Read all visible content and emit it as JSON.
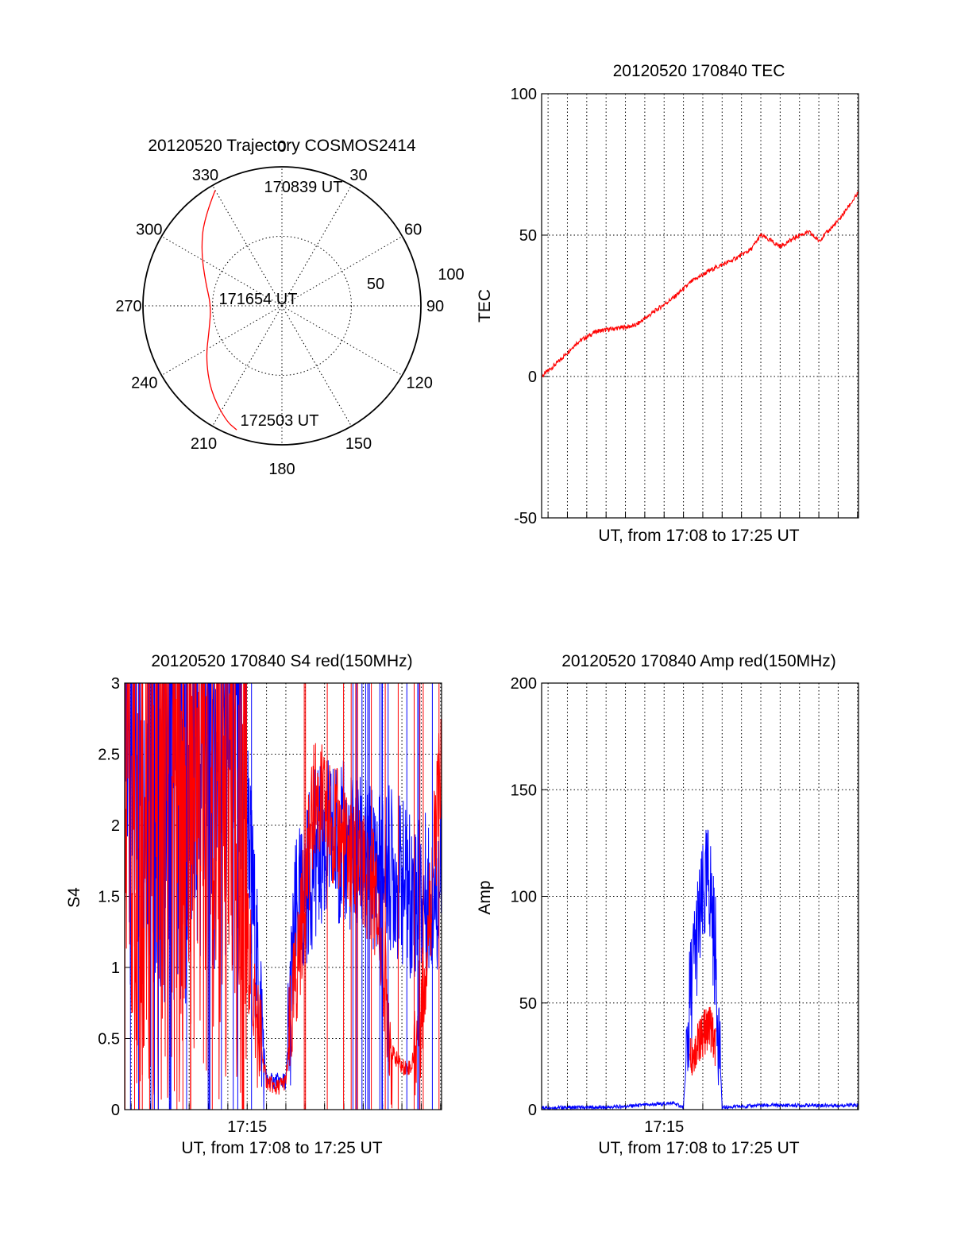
{
  "chart_data": [
    {
      "type": "polar-trajectory",
      "title": "20120520 Trajectory COSMOS2414",
      "azimuth_labels": [
        "0",
        "30",
        "60",
        "90",
        "120",
        "150",
        "180",
        "210",
        "240",
        "270",
        "300",
        "330"
      ],
      "radial_labels": [
        "50",
        "100"
      ],
      "points": [
        {
          "label": "170839 UT",
          "azimuth_deg": 330,
          "radius": 96
        },
        {
          "label": "171654 UT",
          "azimuth_deg": 270,
          "radius": 51
        },
        {
          "label": "172503 UT",
          "azimuth_deg": 200,
          "radius": 95
        }
      ],
      "path": [
        [
          330,
          96
        ],
        [
          318,
          84
        ],
        [
          304,
          70
        ],
        [
          288,
          58
        ],
        [
          270,
          51
        ],
        [
          252,
          55
        ],
        [
          236,
          66
        ],
        [
          220,
          80
        ],
        [
          206,
          92
        ],
        [
          200,
          95
        ]
      ],
      "line_color": "#ff0000"
    },
    {
      "type": "line",
      "title": "20120520 170840 TEC",
      "xlabel": "UT, from 17:08 to 17:25 UT",
      "ylabel": "TEC",
      "xlim": [
        170840,
        172503
      ],
      "ylim": [
        -50,
        100
      ],
      "yticks": [
        "-50",
        "0",
        "50",
        "100"
      ],
      "series": [
        {
          "color": "#ff0000",
          "x": [
            "17:08:40",
            "17:09:30",
            "17:10:30",
            "17:11:30",
            "17:12:30",
            "17:13:30",
            "17:14:30",
            "17:15:30",
            "17:16:30",
            "17:17:30",
            "17:18:30",
            "17:19:30",
            "17:20:00",
            "17:21:00",
            "17:22:00",
            "17:22:30",
            "17:23:00",
            "17:24:00",
            "17:25:03"
          ],
          "y": [
            0,
            5,
            12,
            16,
            17,
            18,
            23,
            28,
            34,
            38,
            41,
            45,
            50,
            46,
            50,
            51,
            48,
            55,
            65
          ]
        }
      ]
    },
    {
      "type": "line",
      "title": "20120520 170840 S4 red(150MHz)",
      "xlabel": "UT, from 17:08 to 17:25 UT",
      "ylabel": "S4",
      "xlim": [
        170840,
        172503
      ],
      "ylim": [
        0,
        3
      ],
      "yticks": [
        "0",
        "0.5",
        "1",
        "1.5",
        "2",
        "2.5",
        "3"
      ],
      "xticks": [
        "17:15"
      ],
      "series": [
        {
          "color": "#0000ff",
          "x": [
            "17:08:40",
            "17:10:00",
            "17:11:30",
            "17:13:00",
            "17:14:00",
            "17:15:00",
            "17:15:30",
            "17:16:00",
            "17:16:30",
            "17:17:00",
            "17:17:30",
            "17:18:30",
            "17:19:30",
            "17:20:30",
            "17:21:30",
            "17:22:30",
            "17:23:30",
            "17:24:30",
            "17:25:03"
          ],
          "y": [
            2.5,
            2.4,
            2.3,
            2.5,
            2.6,
            2.2,
            1.0,
            0.2,
            0.2,
            0.2,
            1.3,
            1.8,
            1.9,
            1.8,
            1.7,
            1.7,
            1.5,
            1.5,
            1.6
          ]
        },
        {
          "color": "#ff0000",
          "x": [
            "17:08:40",
            "17:10:00",
            "17:11:30",
            "17:13:00",
            "17:14:00",
            "17:14:30",
            "17:15:00",
            "17:15:30",
            "17:16:00",
            "17:16:30",
            "17:17:00",
            "17:17:30",
            "17:18:30",
            "17:19:30",
            "17:20:30",
            "17:21:30",
            "17:22:00",
            "17:22:30",
            "17:23:00",
            "17:23:30",
            "17:24:00",
            "17:24:30",
            "17:25:03"
          ],
          "y": [
            2.5,
            2.2,
            2.3,
            2.4,
            2.0,
            1.6,
            1.2,
            0.6,
            0.2,
            0.15,
            0.2,
            0.9,
            2.2,
            2.0,
            1.7,
            1.6,
            1.1,
            0.4,
            0.3,
            0.3,
            0.7,
            1.5,
            2.5
          ]
        }
      ]
    },
    {
      "type": "line",
      "title": "20120520 170840 Amp red(150MHz)",
      "xlabel": "UT, from 17:08 to 17:25 UT",
      "ylabel": "Amp",
      "xlim": [
        170840,
        172503
      ],
      "ylim": [
        0,
        200
      ],
      "yticks": [
        "0",
        "50",
        "100",
        "150",
        "200"
      ],
      "xticks": [
        "17:15"
      ],
      "series": [
        {
          "color": "#0000ff",
          "x": [
            "17:08:40",
            "17:12:00",
            "17:15:30",
            "17:16:00",
            "17:16:20",
            "17:16:40",
            "17:17:00",
            "17:17:20",
            "17:17:40",
            "17:18:00",
            "17:20:00",
            "17:23:00",
            "17:25:03"
          ],
          "y": [
            1,
            1,
            3,
            1,
            50,
            80,
            95,
            110,
            70,
            1,
            2,
            2,
            2
          ]
        },
        {
          "color": "#ff0000",
          "x": [
            "17:16:20",
            "17:16:40",
            "17:17:00",
            "17:17:20",
            "17:17:40"
          ],
          "y": [
            25,
            30,
            35,
            40,
            30
          ]
        }
      ]
    }
  ],
  "minor_tick_seconds": [
    0,
    60,
    120,
    180,
    240,
    300,
    360,
    420,
    480,
    540,
    600,
    660,
    720,
    780,
    840,
    900,
    960
  ]
}
